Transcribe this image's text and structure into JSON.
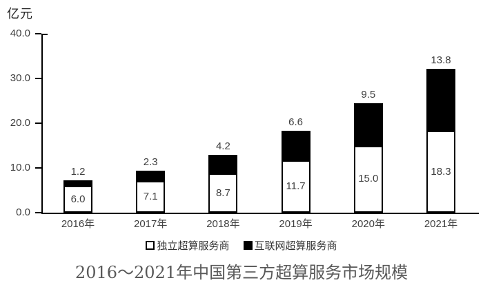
{
  "chart_data": {
    "type": "bar",
    "stacked": true,
    "title": "2016～2021年中国第三方超算服务市场规模",
    "unit_label": "亿元",
    "categories": [
      "2016年",
      "2017年",
      "2018年",
      "2019年",
      "2020年",
      "2021年"
    ],
    "series": [
      {
        "name": "独立超算服务商",
        "fill": "#ffffff",
        "label_placement": "inside",
        "values": [
          6.0,
          7.1,
          8.7,
          11.7,
          15.0,
          18.3
        ]
      },
      {
        "name": "互联网超算服务商",
        "fill": "#000000",
        "label_placement": "above",
        "values": [
          1.2,
          2.3,
          4.2,
          6.6,
          9.5,
          13.8
        ]
      }
    ],
    "yticks": [
      0.0,
      10.0,
      20.0,
      30.0,
      40.0
    ],
    "ylim": [
      0,
      40
    ],
    "grid": false,
    "legend_position": "bottom",
    "colors": {
      "axis": "#000000",
      "bar_outline": "#000000",
      "value_label": "#404040",
      "tick_label": "#404040",
      "legend_label": "#333333",
      "title": "#595959"
    }
  }
}
